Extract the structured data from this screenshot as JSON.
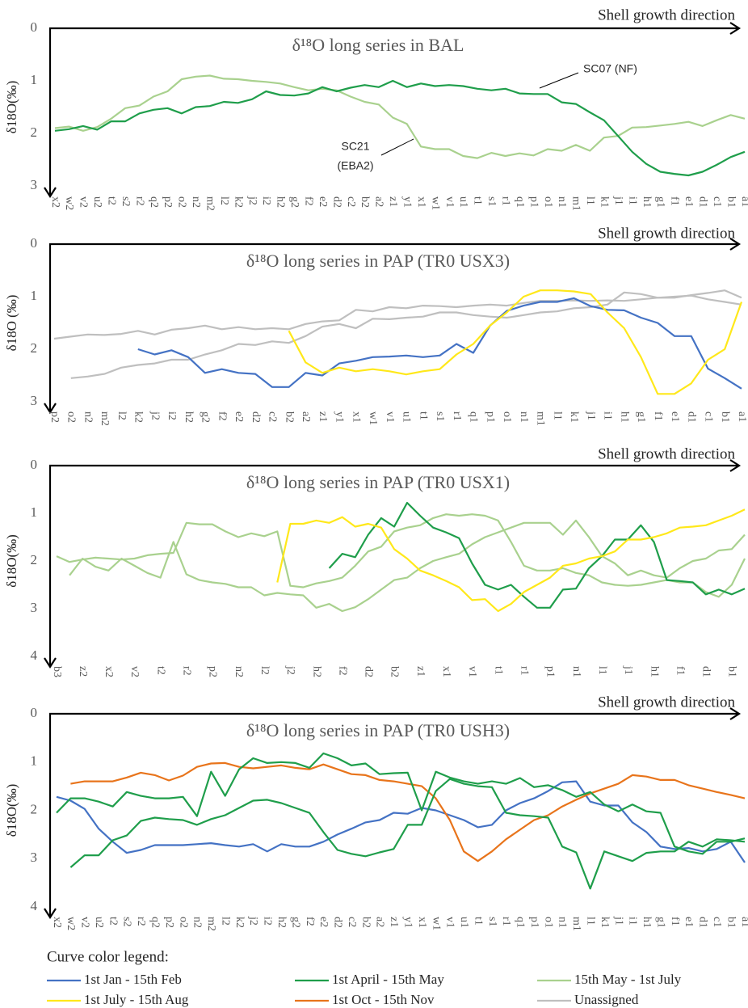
{
  "chart_data": [
    {
      "type": "line",
      "title": "δ¹⁸O long series in BAL",
      "y_label": "δ18O(‰)",
      "direction_label": "Shell growth direction",
      "y_inverted": true,
      "categories": [
        "x2",
        "w2",
        "v2",
        "u2",
        "t2",
        "s2",
        "r2",
        "q2",
        "p2",
        "o2",
        "n2",
        "m2",
        "l2",
        "k2",
        "j2",
        "i2",
        "h2",
        "g2",
        "f2",
        "e2",
        "d2",
        "c2",
        "b2",
        "a2",
        "z1",
        "y1",
        "x1",
        "w1",
        "v1",
        "u1",
        "t1",
        "s1",
        "r1",
        "q1",
        "p1",
        "o1",
        "n1",
        "m1",
        "l1",
        "k1",
        "j1",
        "i1",
        "h1",
        "g1",
        "f1",
        "e1",
        "d1",
        "c1",
        "b1",
        "a1"
      ],
      "ylim": [
        0,
        3
      ],
      "yticks": [
        0,
        1,
        2,
        3
      ],
      "series": [
        {
          "color": "#a9d18e",
          "values": [
            1.9,
            1.87,
            1.95,
            1.88,
            1.72,
            1.52,
            1.47,
            1.3,
            1.2,
            0.97,
            0.92,
            0.9,
            0.96,
            0.97,
            1.0,
            1.02,
            1.05,
            1.12,
            1.18,
            1.15,
            1.18,
            1.3,
            1.4,
            1.45,
            1.7,
            1.82,
            2.25,
            2.3,
            2.3,
            2.43,
            2.47,
            2.37,
            2.43,
            2.38,
            2.42,
            2.3,
            2.33,
            2.22,
            2.33,
            2.08,
            2.05,
            1.89,
            1.88,
            1.85,
            1.82,
            1.78,
            1.86,
            1.75,
            1.65,
            1.72
          ]
        },
        {
          "color": "#1f9e4b",
          "values": [
            1.95,
            1.92,
            1.86,
            1.93,
            1.77,
            1.77,
            1.62,
            1.55,
            1.52,
            1.62,
            1.5,
            1.48,
            1.4,
            1.42,
            1.35,
            1.2,
            1.27,
            1.28,
            1.24,
            1.12,
            1.2,
            1.13,
            1.08,
            1.12,
            1.0,
            1.12,
            1.05,
            1.1,
            1.08,
            1.1,
            1.15,
            1.18,
            1.15,
            1.24,
            1.25,
            1.25,
            1.41,
            1.44,
            1.6,
            1.75,
            2.05,
            2.35,
            2.58,
            2.73,
            2.77,
            2.8,
            2.73,
            2.6,
            2.45,
            2.35
          ]
        }
      ],
      "annotations": [
        {
          "text": "SC07 (NF)"
        },
        {
          "text": "SC21"
        },
        {
          "text": "(EBA2)"
        }
      ]
    },
    {
      "type": "line",
      "title": "δ¹⁸O long series in PAP (TR0 USX3)",
      "y_label": "δ18O (‰)",
      "direction_label": "Shell growth direction",
      "y_inverted": true,
      "categories": [
        "p2",
        "o2",
        "n2",
        "m2",
        "l2",
        "k2",
        "j2",
        "i2",
        "h2",
        "g2",
        "f2",
        "e2",
        "d2",
        "c2",
        "b2",
        "a2",
        "z1",
        "y1",
        "x1",
        "w1",
        "v1",
        "u1",
        "t1",
        "s1",
        "r1",
        "q1",
        "p1",
        "o1",
        "n1",
        "m1",
        "l1",
        "k1",
        "j1",
        "i1",
        "h1",
        "g1",
        "f1",
        "e1",
        "d1",
        "c1",
        "b1",
        "a1"
      ],
      "ylim": [
        0,
        3
      ],
      "yticks": [
        0,
        1,
        2,
        3
      ],
      "series": [
        {
          "color": "#bfbfbf",
          "values": [
            1.8,
            1.76,
            1.72,
            1.73,
            1.71,
            1.65,
            1.72,
            1.63,
            1.6,
            1.55,
            1.62,
            1.58,
            1.62,
            1.6,
            1.62,
            1.52,
            1.47,
            1.45,
            1.25,
            1.28,
            1.2,
            1.22,
            1.17,
            1.18,
            1.2,
            1.17,
            1.15,
            1.17,
            1.12,
            1.08,
            1.08,
            1.07,
            1.08,
            1.07,
            1.08,
            1.05,
            1.02,
            1.02,
            0.97,
            0.93,
            0.88,
            1.02
          ]
        },
        {
          "color": "#bfbfbf",
          "values": [
            null,
            2.55,
            2.52,
            2.47,
            2.35,
            2.3,
            2.27,
            2.2,
            2.2,
            2.1,
            2.02,
            1.9,
            1.92,
            1.85,
            1.88,
            1.75,
            1.57,
            1.52,
            1.6,
            1.42,
            1.43,
            1.4,
            1.38,
            1.3,
            1.3,
            1.35,
            1.38,
            1.4,
            1.35,
            1.3,
            1.28,
            1.22,
            1.2,
            1.15,
            0.92,
            0.95,
            1.02,
            1.0,
            0.98,
            1.05,
            1.1,
            1.15
          ]
        },
        {
          "color": "#4472c4",
          "values": [
            null,
            null,
            null,
            null,
            null,
            2.0,
            2.1,
            2.02,
            2.15,
            2.45,
            2.38,
            2.45,
            2.47,
            2.72,
            2.72,
            2.45,
            2.5,
            2.27,
            2.22,
            2.15,
            2.14,
            2.12,
            2.15,
            2.12,
            1.9,
            2.07,
            1.55,
            1.27,
            1.17,
            1.1,
            1.1,
            1.03,
            1.18,
            1.25,
            1.26,
            1.4,
            1.5,
            1.75,
            1.75,
            2.37,
            2.55,
            2.75
          ]
        },
        {
          "color": "#ffe81a",
          "values": [
            null,
            null,
            null,
            null,
            null,
            null,
            null,
            null,
            null,
            null,
            null,
            null,
            null,
            null,
            1.65,
            2.25,
            2.45,
            2.35,
            2.42,
            2.38,
            2.42,
            2.48,
            2.42,
            2.38,
            2.1,
            1.9,
            1.55,
            1.3,
            1.0,
            0.88,
            0.88,
            0.9,
            0.95,
            1.3,
            1.6,
            2.15,
            2.85,
            2.85,
            2.65,
            2.2,
            2.0,
            1.1
          ]
        }
      ]
    },
    {
      "type": "line",
      "title": "δ¹⁸O long series in PAP (TR0 USX1)",
      "y_label": "δ18O(‰)",
      "direction_label": "Shell growth direction",
      "y_inverted": true,
      "categories": [
        "b3",
        null,
        "z2",
        null,
        "x2",
        null,
        "v2",
        null,
        "t2",
        null,
        "r2",
        null,
        "p2",
        null,
        "n2",
        null,
        "l2",
        null,
        "j2",
        null,
        "h2",
        null,
        "f2",
        null,
        "d2",
        null,
        "b2",
        null,
        "z1",
        null,
        "x1",
        null,
        "v1",
        null,
        "t1",
        null,
        "r1",
        null,
        "p1",
        null,
        "n1",
        null,
        "l1",
        null,
        "j1",
        null,
        "h1",
        null,
        "f1",
        null,
        "d1",
        null,
        "b1",
        null
      ],
      "ylim": [
        0,
        4
      ],
      "yticks": [
        0,
        1,
        2,
        3,
        4
      ],
      "series": [
        {
          "color": "#a9d18e",
          "values": [
            1.9,
            2.02,
            1.97,
            1.93,
            1.95,
            1.97,
            1.95,
            1.88,
            1.85,
            1.83,
            1.2,
            1.23,
            1.23,
            1.38,
            1.5,
            1.42,
            1.48,
            1.38,
            2.52,
            2.55,
            2.47,
            2.42,
            2.35,
            2.1,
            1.8,
            1.7,
            1.38,
            1.3,
            1.25,
            1.1,
            1.02,
            1.05,
            1.02,
            1.05,
            1.15,
            1.6,
            2.1,
            2.2,
            2.2,
            2.15,
            2.25,
            2.3,
            2.45,
            2.5,
            2.52,
            2.5,
            2.45,
            2.4,
            2.45,
            2.45,
            2.65,
            2.75,
            2.5,
            1.95
          ]
        },
        {
          "color": "#a9d18e",
          "values": [
            null,
            2.3,
            1.95,
            2.12,
            2.2,
            1.95,
            2.1,
            2.25,
            2.35,
            1.6,
            2.28,
            2.4,
            2.45,
            2.48,
            2.55,
            2.55,
            2.72,
            2.67,
            2.7,
            2.72,
            2.98,
            2.9,
            3.05,
            2.97,
            2.8,
            2.6,
            2.4,
            2.35,
            2.15,
            2.0,
            1.92,
            1.85,
            1.65,
            1.5,
            1.4,
            1.3,
            1.2,
            1.2,
            1.2,
            1.45,
            1.15,
            1.5,
            1.9,
            2.05,
            2.3,
            2.2,
            2.3,
            2.35,
            2.15,
            2.0,
            1.95,
            1.78,
            1.75,
            1.45
          ]
        },
        {
          "color": "#1f9e4b",
          "values": [
            null,
            null,
            null,
            null,
            null,
            null,
            null,
            null,
            null,
            null,
            null,
            null,
            null,
            null,
            null,
            null,
            null,
            null,
            null,
            null,
            null,
            2.15,
            1.85,
            1.92,
            1.45,
            1.1,
            1.28,
            0.78,
            1.05,
            1.3,
            1.4,
            1.52,
            2.05,
            2.5,
            2.6,
            2.5,
            2.75,
            2.98,
            2.98,
            2.6,
            2.58,
            2.15,
            1.9,
            1.55,
            1.55,
            1.25,
            1.6,
            2.4,
            2.42,
            2.45,
            2.7,
            2.6,
            2.7,
            2.58
          ]
        },
        {
          "color": "#ffe81a",
          "values": [
            null,
            null,
            null,
            null,
            null,
            null,
            null,
            null,
            null,
            null,
            null,
            null,
            null,
            null,
            null,
            null,
            null,
            2.45,
            1.22,
            1.22,
            1.15,
            1.2,
            1.08,
            1.28,
            1.22,
            1.3,
            1.75,
            1.95,
            2.2,
            2.3,
            2.42,
            2.55,
            2.82,
            2.8,
            3.05,
            2.9,
            2.65,
            2.5,
            2.35,
            2.1,
            2.05,
            1.95,
            1.9,
            1.8,
            1.55,
            1.55,
            1.5,
            1.42,
            1.3,
            1.28,
            1.25,
            1.15,
            1.05,
            0.92
          ]
        }
      ]
    },
    {
      "type": "line",
      "title": "δ¹⁸O long series in PAP (TR0 USH3)",
      "y_label": "δ18O(‰)",
      "direction_label": "Shell growth direction",
      "y_inverted": true,
      "categories": [
        "x2",
        "w2",
        "v2",
        "u2",
        "t2",
        "s2",
        "r2",
        "q2",
        "p2",
        "o2",
        "n2",
        "m2",
        "l2",
        "k2",
        "j2",
        "i2",
        "h2",
        "g2",
        "f2",
        "e2",
        "d2",
        "c2",
        "b2",
        "a2",
        "z1",
        "y1",
        "x1",
        "w1",
        "v1",
        "u1",
        "t1",
        "s1",
        "r1",
        "q1",
        "p1",
        "o1",
        "n1",
        "m1",
        "l1",
        "k1",
        "j1",
        "i1",
        "h1",
        "g1",
        "f1",
        "e1",
        "d1",
        "c1",
        "b1",
        "a1"
      ],
      "ylim": [
        0,
        4
      ],
      "yticks": [
        0,
        1,
        2,
        3,
        4
      ],
      "series": [
        {
          "color": "#4472c4",
          "values": [
            1.72,
            1.8,
            1.97,
            2.38,
            2.65,
            2.88,
            2.82,
            2.72,
            2.72,
            2.72,
            2.7,
            2.68,
            2.72,
            2.75,
            2.7,
            2.85,
            2.7,
            2.75,
            2.75,
            2.65,
            2.5,
            2.38,
            2.25,
            2.2,
            2.05,
            2.07,
            1.95,
            2.0,
            2.1,
            2.2,
            2.35,
            2.3,
            2.0,
            1.85,
            1.75,
            1.6,
            1.42,
            1.4,
            1.82,
            1.9,
            1.9,
            2.25,
            2.45,
            2.75,
            2.8,
            2.78,
            2.85,
            2.8,
            2.65,
            3.08
          ]
        },
        {
          "color": "#e8741b",
          "values": [
            null,
            1.45,
            1.4,
            1.4,
            1.4,
            1.32,
            1.22,
            1.27,
            1.38,
            1.28,
            1.1,
            1.03,
            1.02,
            1.1,
            1.13,
            1.1,
            1.07,
            1.12,
            1.15,
            1.05,
            1.15,
            1.25,
            1.27,
            1.37,
            1.4,
            1.45,
            1.5,
            1.75,
            2.2,
            2.85,
            3.05,
            2.85,
            2.6,
            2.4,
            2.2,
            2.1,
            1.92,
            1.78,
            1.65,
            1.55,
            1.45,
            1.27,
            1.3,
            1.37,
            1.37,
            1.48,
            1.55,
            1.62,
            1.68,
            1.75
          ]
        },
        {
          "color": "#1f9e4b",
          "values": [
            2.05,
            1.75,
            1.75,
            1.82,
            1.92,
            1.62,
            1.7,
            1.75,
            1.75,
            1.72,
            2.12,
            1.2,
            1.7,
            1.15,
            0.92,
            1.02,
            1.0,
            1.02,
            1.12,
            0.82,
            0.92,
            1.07,
            1.03,
            1.25,
            1.23,
            1.22,
            2.0,
            1.2,
            1.32,
            1.4,
            1.45,
            1.4,
            1.45,
            1.33,
            1.52,
            1.48,
            1.58,
            1.72,
            1.62,
            1.88,
            2.02,
            1.88,
            2.02,
            2.05,
            2.75,
            2.85,
            2.9,
            2.65,
            2.65,
            2.58
          ]
        },
        {
          "color": "#1f9e4b",
          "values": [
            null,
            3.18,
            2.93,
            2.93,
            2.62,
            2.52,
            2.22,
            2.15,
            2.18,
            2.2,
            2.3,
            2.18,
            2.1,
            1.95,
            1.8,
            1.78,
            1.85,
            1.95,
            2.05,
            2.45,
            2.82,
            2.9,
            2.95,
            2.87,
            2.8,
            2.3,
            2.3,
            1.6,
            1.35,
            1.45,
            1.5,
            1.52,
            2.05,
            2.1,
            2.12,
            2.15,
            2.75,
            2.87,
            3.62,
            2.85,
            2.95,
            3.05,
            2.88,
            2.85,
            2.85,
            2.65,
            2.75,
            2.6,
            2.62,
            2.65
          ]
        }
      ]
    }
  ],
  "legend": {
    "title": "Curve color legend:",
    "entries": [
      {
        "name": "1st Jan - 15th Feb",
        "color": "#4472c4"
      },
      {
        "name": "1st April - 15th May",
        "color": "#1f9e4b"
      },
      {
        "name": "15th May - 1st July",
        "color": "#a9d18e"
      },
      {
        "name": "1st July - 15th Aug",
        "color": "#ffe81a"
      },
      {
        "name": "1st Oct - 15th Nov",
        "color": "#e8741b"
      },
      {
        "name": "Unassigned",
        "color": "#bfbfbf"
      }
    ]
  }
}
